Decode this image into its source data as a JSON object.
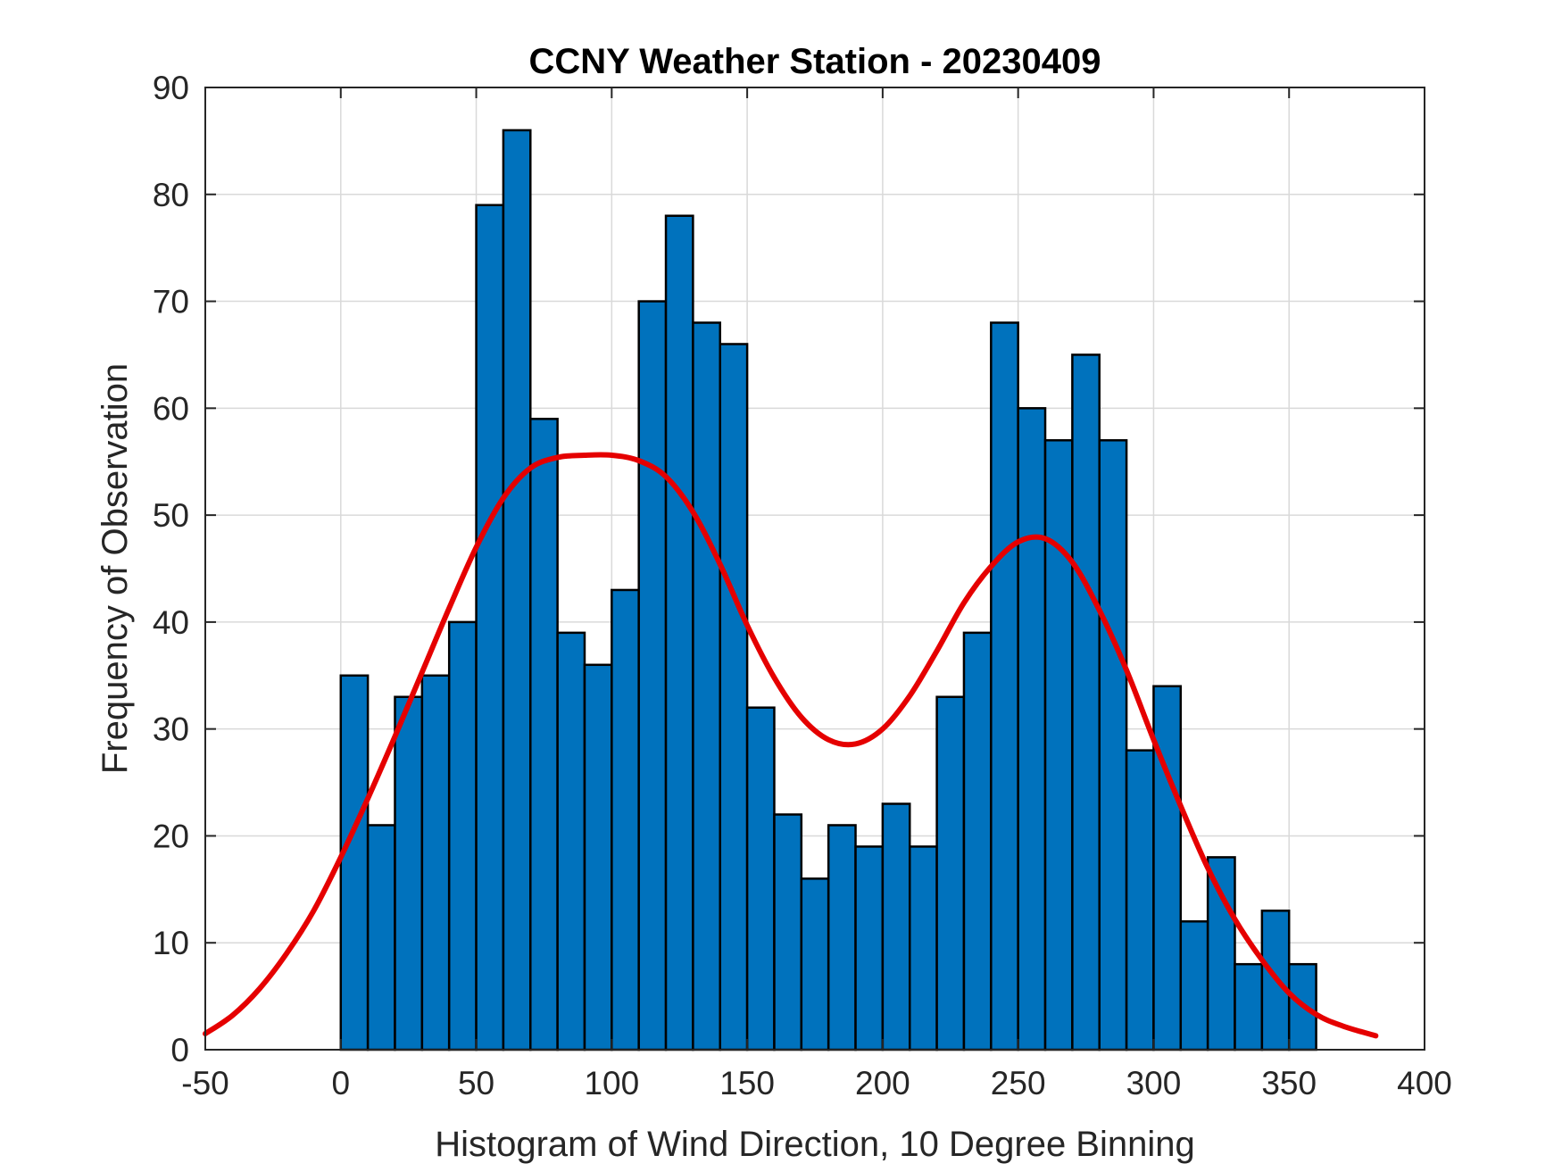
{
  "chart_data": {
    "type": "bar",
    "title": "CCNY Weather Station - 20230409",
    "xlabel": "Histogram of Wind Direction, 10 Degree Binning",
    "ylabel": "Frequency of Observation",
    "xlim": [
      -50,
      400
    ],
    "ylim": [
      0,
      90
    ],
    "xticks": [
      "-50",
      "0",
      "50",
      "100",
      "150",
      "200",
      "250",
      "300",
      "350",
      "400"
    ],
    "yticks": [
      "0",
      "10",
      "20",
      "30",
      "40",
      "50",
      "60",
      "70",
      "80",
      "90"
    ],
    "grid": true,
    "bin_width": 10,
    "bin_edges_start": 0,
    "values": [
      35,
      21,
      33,
      35,
      40,
      79,
      86,
      59,
      39,
      36,
      43,
      70,
      78,
      68,
      66,
      32,
      22,
      16,
      21,
      19,
      23,
      19,
      33,
      39,
      68,
      60,
      57,
      65,
      57,
      28,
      34,
      12,
      18,
      8,
      13,
      8
    ],
    "fit_curve": {
      "x": [
        -50,
        -40,
        -30,
        -20,
        -10,
        0,
        10,
        20,
        30,
        40,
        50,
        60,
        70,
        80,
        90,
        100,
        110,
        120,
        130,
        140,
        150,
        160,
        170,
        180,
        190,
        200,
        210,
        220,
        230,
        240,
        250,
        260,
        270,
        280,
        290,
        300,
        310,
        320,
        330,
        340,
        350,
        360,
        370,
        382
      ],
      "y": [
        1.5,
        3.2,
        5.7,
        9.0,
        13.0,
        18.0,
        23.5,
        29.3,
        35.3,
        41.3,
        47.0,
        51.6,
        54.4,
        55.4,
        55.6,
        55.6,
        55.1,
        53.6,
        50.3,
        45.4,
        39.7,
        34.8,
        31.1,
        29.0,
        28.6,
        30.0,
        33.1,
        37.3,
        41.8,
        45.2,
        47.5,
        47.8,
        45.6,
        41.1,
        35.5,
        29.0,
        22.8,
        17.0,
        12.2,
        8.4,
        5.3,
        3.3,
        2.2,
        1.3
      ],
      "color": "#e50000"
    },
    "bar_color": "#0072bd"
  }
}
